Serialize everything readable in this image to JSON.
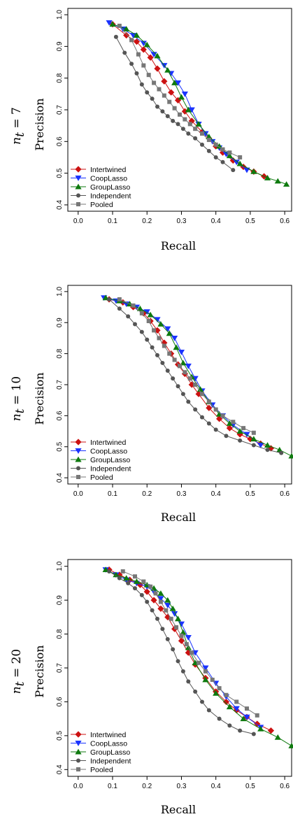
{
  "figure": {
    "panels": [
      {
        "row_label": "n_t = 7",
        "nt_var": "n",
        "nt_sub": "t",
        "nt_rest": " = 7"
      },
      {
        "row_label": "n_t = 10",
        "nt_var": "n",
        "nt_sub": "t",
        "nt_rest": " = 10"
      },
      {
        "row_label": "n_t = 20",
        "nt_var": "n",
        "nt_sub": "t",
        "nt_rest": " = 20"
      }
    ]
  },
  "chart_data": [
    {
      "type": "line",
      "xlabel": "Recall",
      "ylabel": "Precision",
      "xlim": [
        -0.03,
        0.62
      ],
      "ylim": [
        0.38,
        1.02
      ],
      "xticks": [
        0.0,
        0.1,
        0.2,
        0.3,
        0.4,
        0.5,
        0.6
      ],
      "xtick_labels": [
        "0.0",
        "0.1",
        "0.2",
        "0.3",
        "0.4",
        "0.5",
        "0.6"
      ],
      "yticks": [
        0.4,
        0.5,
        0.6,
        0.7,
        0.8,
        0.9,
        1.0
      ],
      "ytick_labels": [
        "0.4",
        "0.5",
        "0.6",
        "0.7",
        "0.8",
        "0.9",
        "1.0"
      ],
      "legend_position": "bottom-left",
      "series": [
        {
          "name": "Intertwined",
          "color": "#cc1111",
          "marker": "diamond",
          "x": [
            0.1,
            0.14,
            0.17,
            0.19,
            0.21,
            0.23,
            0.25,
            0.27,
            0.29,
            0.31,
            0.33,
            0.36,
            0.38,
            0.4,
            0.42,
            0.45,
            0.48,
            0.51,
            0.54
          ],
          "y": [
            0.97,
            0.935,
            0.915,
            0.89,
            0.865,
            0.83,
            0.79,
            0.755,
            0.73,
            0.695,
            0.665,
            0.63,
            0.61,
            0.585,
            0.565,
            0.54,
            0.52,
            0.505,
            0.49
          ]
        },
        {
          "name": "CoopLasso",
          "color": "#1a33ff",
          "marker": "triangle-down",
          "x": [
            0.09,
            0.13,
            0.16,
            0.19,
            0.22,
            0.25,
            0.27,
            0.29,
            0.31,
            0.33,
            0.35,
            0.37,
            0.39,
            0.41,
            0.43,
            0.46,
            0.49
          ],
          "y": [
            0.975,
            0.955,
            0.935,
            0.91,
            0.875,
            0.84,
            0.815,
            0.785,
            0.75,
            0.7,
            0.655,
            0.625,
            0.6,
            0.58,
            0.56,
            0.535,
            0.51
          ]
        },
        {
          "name": "GroupLasso",
          "color": "#0e7a0e",
          "marker": "triangle-up",
          "x": [
            0.1,
            0.14,
            0.17,
            0.2,
            0.23,
            0.26,
            0.28,
            0.3,
            0.32,
            0.35,
            0.38,
            0.41,
            0.44,
            0.47,
            0.51,
            0.55,
            0.58,
            0.605
          ],
          "y": [
            0.97,
            0.955,
            0.935,
            0.905,
            0.87,
            0.825,
            0.785,
            0.74,
            0.7,
            0.655,
            0.615,
            0.585,
            0.555,
            0.53,
            0.505,
            0.485,
            0.475,
            0.465
          ]
        },
        {
          "name": "Independent",
          "color": "#555555",
          "marker": "circle",
          "x": [
            0.11,
            0.135,
            0.155,
            0.17,
            0.185,
            0.2,
            0.215,
            0.23,
            0.245,
            0.26,
            0.275,
            0.29,
            0.305,
            0.32,
            0.34,
            0.36,
            0.38,
            0.4,
            0.42,
            0.45
          ],
          "y": [
            0.93,
            0.88,
            0.845,
            0.815,
            0.78,
            0.755,
            0.735,
            0.71,
            0.695,
            0.68,
            0.665,
            0.655,
            0.64,
            0.625,
            0.61,
            0.59,
            0.57,
            0.55,
            0.535,
            0.51
          ]
        },
        {
          "name": "Pooled",
          "color": "#777777",
          "marker": "square",
          "x": [
            0.12,
            0.155,
            0.175,
            0.19,
            0.205,
            0.22,
            0.235,
            0.25,
            0.265,
            0.28,
            0.295,
            0.31,
            0.325,
            0.34,
            0.36,
            0.38,
            0.4,
            0.42,
            0.44,
            0.47
          ],
          "y": [
            0.965,
            0.92,
            0.875,
            0.84,
            0.81,
            0.785,
            0.765,
            0.745,
            0.725,
            0.705,
            0.685,
            0.67,
            0.655,
            0.64,
            0.625,
            0.605,
            0.59,
            0.575,
            0.565,
            0.55
          ]
        }
      ]
    },
    {
      "type": "line",
      "xlabel": "Recall",
      "ylabel": "Precision",
      "xlim": [
        -0.03,
        0.62
      ],
      "ylim": [
        0.38,
        1.02
      ],
      "xticks": [
        0.0,
        0.1,
        0.2,
        0.3,
        0.4,
        0.5,
        0.6
      ],
      "xtick_labels": [
        "0.0",
        "0.1",
        "0.2",
        "0.3",
        "0.4",
        "0.5",
        "0.6"
      ],
      "yticks": [
        0.4,
        0.5,
        0.6,
        0.7,
        0.8,
        0.9,
        1.0
      ],
      "ytick_labels": [
        "0.4",
        "0.5",
        "0.6",
        "0.7",
        "0.8",
        "0.9",
        "1.0"
      ],
      "legend_position": "bottom-left",
      "series": [
        {
          "name": "Intertwined",
          "color": "#cc1111",
          "marker": "diamond",
          "x": [
            0.09,
            0.13,
            0.16,
            0.19,
            0.21,
            0.23,
            0.25,
            0.27,
            0.29,
            0.31,
            0.33,
            0.35,
            0.38,
            0.41,
            0.44,
            0.47,
            0.5,
            0.53,
            0.56
          ],
          "y": [
            0.975,
            0.965,
            0.95,
            0.93,
            0.905,
            0.875,
            0.835,
            0.8,
            0.765,
            0.735,
            0.7,
            0.67,
            0.625,
            0.59,
            0.56,
            0.54,
            0.525,
            0.51,
            0.495
          ]
        },
        {
          "name": "CoopLasso",
          "color": "#1a33ff",
          "marker": "triangle-down",
          "x": [
            0.075,
            0.11,
            0.14,
            0.17,
            0.2,
            0.23,
            0.26,
            0.28,
            0.3,
            0.32,
            0.34,
            0.36,
            0.39,
            0.42,
            0.45,
            0.49,
            0.53
          ],
          "y": [
            0.98,
            0.97,
            0.96,
            0.95,
            0.935,
            0.91,
            0.88,
            0.85,
            0.805,
            0.76,
            0.72,
            0.68,
            0.635,
            0.6,
            0.57,
            0.54,
            0.505
          ]
        },
        {
          "name": "GroupLasso",
          "color": "#0e7a0e",
          "marker": "triangle-up",
          "x": [
            0.08,
            0.12,
            0.15,
            0.18,
            0.21,
            0.24,
            0.265,
            0.285,
            0.305,
            0.33,
            0.355,
            0.38,
            0.41,
            0.44,
            0.47,
            0.51,
            0.55,
            0.585,
            0.62
          ],
          "y": [
            0.98,
            0.97,
            0.96,
            0.945,
            0.925,
            0.895,
            0.865,
            0.82,
            0.77,
            0.725,
            0.685,
            0.645,
            0.605,
            0.575,
            0.55,
            0.525,
            0.505,
            0.49,
            0.47
          ]
        },
        {
          "name": "Independent",
          "color": "#555555",
          "marker": "circle",
          "x": [
            0.09,
            0.12,
            0.145,
            0.165,
            0.185,
            0.2,
            0.215,
            0.23,
            0.245,
            0.26,
            0.275,
            0.29,
            0.305,
            0.32,
            0.34,
            0.36,
            0.38,
            0.4,
            0.43,
            0.47,
            0.51,
            0.55,
            0.59
          ],
          "y": [
            0.975,
            0.945,
            0.92,
            0.895,
            0.87,
            0.845,
            0.82,
            0.795,
            0.77,
            0.745,
            0.72,
            0.695,
            0.67,
            0.645,
            0.62,
            0.595,
            0.575,
            0.555,
            0.535,
            0.52,
            0.505,
            0.49,
            0.48
          ]
        },
        {
          "name": "Pooled",
          "color": "#777777",
          "marker": "square",
          "x": [
            0.12,
            0.16,
            0.185,
            0.205,
            0.22,
            0.235,
            0.25,
            0.265,
            0.28,
            0.295,
            0.31,
            0.325,
            0.34,
            0.36,
            0.38,
            0.4,
            0.42,
            0.45,
            0.48,
            0.51
          ],
          "y": [
            0.975,
            0.955,
            0.93,
            0.905,
            0.875,
            0.85,
            0.825,
            0.8,
            0.78,
            0.76,
            0.74,
            0.72,
            0.7,
            0.67,
            0.645,
            0.62,
            0.6,
            0.58,
            0.56,
            0.545
          ]
        }
      ]
    },
    {
      "type": "line",
      "xlabel": "Recall",
      "ylabel": "Precision",
      "xlim": [
        -0.03,
        0.62
      ],
      "ylim": [
        0.38,
        1.02
      ],
      "xticks": [
        0.0,
        0.1,
        0.2,
        0.3,
        0.4,
        0.5,
        0.6
      ],
      "xtick_labels": [
        "0.0",
        "0.1",
        "0.2",
        "0.3",
        "0.4",
        "0.5",
        "0.6"
      ],
      "yticks": [
        0.4,
        0.5,
        0.6,
        0.7,
        0.8,
        0.9,
        1.0
      ],
      "ytick_labels": [
        "0.4",
        "0.5",
        "0.6",
        "0.7",
        "0.8",
        "0.9",
        "1.0"
      ],
      "legend_position": "bottom-left",
      "series": [
        {
          "name": "Intertwined",
          "color": "#cc1111",
          "marker": "diamond",
          "x": [
            0.09,
            0.12,
            0.15,
            0.18,
            0.2,
            0.22,
            0.24,
            0.26,
            0.28,
            0.3,
            0.32,
            0.34,
            0.37,
            0.4,
            0.43,
            0.46,
            0.49,
            0.52,
            0.56
          ],
          "y": [
            0.99,
            0.975,
            0.96,
            0.945,
            0.925,
            0.9,
            0.875,
            0.85,
            0.815,
            0.78,
            0.745,
            0.71,
            0.67,
            0.63,
            0.6,
            0.575,
            0.555,
            0.535,
            0.515
          ]
        },
        {
          "name": "CoopLasso",
          "color": "#1a33ff",
          "marker": "triangle-down",
          "x": [
            0.08,
            0.11,
            0.14,
            0.17,
            0.2,
            0.22,
            0.24,
            0.26,
            0.28,
            0.3,
            0.32,
            0.34,
            0.37,
            0.4,
            0.43,
            0.46,
            0.49,
            0.53
          ],
          "y": [
            0.99,
            0.975,
            0.96,
            0.95,
            0.94,
            0.925,
            0.905,
            0.885,
            0.86,
            0.83,
            0.79,
            0.745,
            0.7,
            0.655,
            0.615,
            0.58,
            0.555,
            0.525
          ]
        },
        {
          "name": "GroupLasso",
          "color": "#0e7a0e",
          "marker": "triangle-up",
          "x": [
            0.08,
            0.11,
            0.14,
            0.17,
            0.2,
            0.22,
            0.24,
            0.26,
            0.275,
            0.29,
            0.305,
            0.32,
            0.34,
            0.37,
            0.4,
            0.44,
            0.48,
            0.53,
            0.58,
            0.62
          ],
          "y": [
            0.99,
            0.975,
            0.965,
            0.955,
            0.945,
            0.935,
            0.92,
            0.9,
            0.875,
            0.845,
            0.805,
            0.76,
            0.715,
            0.665,
            0.625,
            0.585,
            0.55,
            0.52,
            0.495,
            0.47
          ]
        },
        {
          "name": "Independent",
          "color": "#555555",
          "marker": "circle",
          "x": [
            0.09,
            0.12,
            0.145,
            0.165,
            0.185,
            0.2,
            0.215,
            0.23,
            0.245,
            0.26,
            0.275,
            0.29,
            0.305,
            0.32,
            0.34,
            0.36,
            0.38,
            0.41,
            0.44,
            0.47,
            0.51
          ],
          "y": [
            0.985,
            0.965,
            0.95,
            0.935,
            0.915,
            0.895,
            0.87,
            0.845,
            0.815,
            0.785,
            0.755,
            0.72,
            0.69,
            0.66,
            0.63,
            0.6,
            0.575,
            0.55,
            0.53,
            0.515,
            0.505
          ]
        },
        {
          "name": "Pooled",
          "color": "#777777",
          "marker": "square",
          "x": [
            0.13,
            0.165,
            0.19,
            0.21,
            0.225,
            0.24,
            0.255,
            0.27,
            0.285,
            0.3,
            0.315,
            0.33,
            0.35,
            0.37,
            0.39,
            0.41,
            0.43,
            0.46,
            0.49,
            0.52
          ],
          "y": [
            0.985,
            0.97,
            0.955,
            0.94,
            0.92,
            0.895,
            0.87,
            0.845,
            0.82,
            0.795,
            0.77,
            0.745,
            0.715,
            0.69,
            0.665,
            0.64,
            0.62,
            0.6,
            0.58,
            0.56
          ]
        }
      ]
    }
  ]
}
